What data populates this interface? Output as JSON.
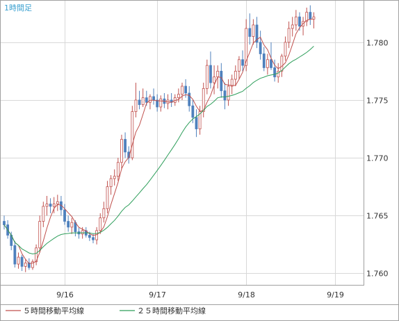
{
  "chart_data": {
    "type": "candlestick",
    "title": "1時間足",
    "y_ticks": [
      "1.780",
      "1.775",
      "1.770",
      "1.765",
      "1.760"
    ],
    "x_ticks": [
      "9/16",
      "9/17",
      "9/18",
      "9/19"
    ],
    "ylim": [
      1.759,
      1.7836
    ],
    "grid": true,
    "legend_position": "bottom",
    "colors": {
      "up": "#c0504d",
      "down": "#4f81bd",
      "ma5": "#c0504d",
      "ma25": "#2e9e5b",
      "grid": "#d8d8d8",
      "frame": "#a0a0a0"
    },
    "series": [
      {
        "name": "５時間移動平均線",
        "color": "#c0504d",
        "kind": "ma5"
      },
      {
        "name": "２５時間移動平均線",
        "color": "#2e9e5b",
        "kind": "ma25"
      }
    ],
    "x_tick_candle_index": [
      17,
      43,
      68,
      93
    ],
    "candles": [
      [
        1.7645,
        1.765,
        1.7638,
        1.7642
      ],
      [
        1.7642,
        1.7646,
        1.763,
        1.7633
      ],
      [
        1.7633,
        1.7636,
        1.762,
        1.7624
      ],
      [
        1.7624,
        1.7628,
        1.7605,
        1.7608
      ],
      [
        1.7608,
        1.7618,
        1.7604,
        1.7614
      ],
      [
        1.7614,
        1.7616,
        1.7602,
        1.7606
      ],
      [
        1.7606,
        1.7612,
        1.7601,
        1.7609
      ],
      [
        1.7609,
        1.7613,
        1.7603,
        1.7605
      ],
      [
        1.7605,
        1.7612,
        1.7603,
        1.761
      ],
      [
        1.761,
        1.7625,
        1.7607,
        1.7622
      ],
      [
        1.7622,
        1.765,
        1.7618,
        1.7645
      ],
      [
        1.7645,
        1.7662,
        1.764,
        1.7658
      ],
      [
        1.7658,
        1.7667,
        1.765,
        1.766
      ],
      [
        1.766,
        1.7665,
        1.7652,
        1.7658
      ],
      [
        1.7658,
        1.7666,
        1.7652,
        1.766
      ],
      [
        1.766,
        1.7668,
        1.7654,
        1.7662
      ],
      [
        1.7662,
        1.7667,
        1.765,
        1.7655
      ],
      [
        1.7655,
        1.766,
        1.7642,
        1.7645
      ],
      [
        1.7645,
        1.765,
        1.7636,
        1.764
      ],
      [
        1.764,
        1.7648,
        1.7634,
        1.7644
      ],
      [
        1.7644,
        1.7646,
        1.7632,
        1.7636
      ],
      [
        1.7636,
        1.764,
        1.763,
        1.7634
      ],
      [
        1.7634,
        1.764,
        1.763,
        1.7637
      ],
      [
        1.7637,
        1.764,
        1.7631,
        1.7633
      ],
      [
        1.7633,
        1.7636,
        1.7628,
        1.7631
      ],
      [
        1.7631,
        1.7634,
        1.7626,
        1.7629
      ],
      [
        1.7629,
        1.764,
        1.7625,
        1.7637
      ],
      [
        1.7637,
        1.7652,
        1.7634,
        1.7648
      ],
      [
        1.7648,
        1.7662,
        1.7644,
        1.7656
      ],
      [
        1.7656,
        1.768,
        1.7652,
        1.7675
      ],
      [
        1.7675,
        1.7685,
        1.7668,
        1.7682
      ],
      [
        1.7682,
        1.769,
        1.7676,
        1.7684
      ],
      [
        1.7684,
        1.77,
        1.768,
        1.7696
      ],
      [
        1.7696,
        1.772,
        1.769,
        1.7716
      ],
      [
        1.7716,
        1.7722,
        1.77,
        1.7705
      ],
      [
        1.7705,
        1.771,
        1.7695,
        1.77
      ],
      [
        1.77,
        1.7745,
        1.7698,
        1.774
      ],
      [
        1.774,
        1.7765,
        1.7735,
        1.775
      ],
      [
        1.775,
        1.7758,
        1.7742,
        1.7746
      ],
      [
        1.7746,
        1.776,
        1.7744,
        1.7752
      ],
      [
        1.7752,
        1.7758,
        1.7745,
        1.7748
      ],
      [
        1.7748,
        1.7755,
        1.7742,
        1.7753
      ],
      [
        1.7753,
        1.776,
        1.7746,
        1.775
      ],
      [
        1.775,
        1.7755,
        1.774,
        1.7744
      ],
      [
        1.7744,
        1.7754,
        1.774,
        1.7751
      ],
      [
        1.7751,
        1.7756,
        1.7743,
        1.7747
      ],
      [
        1.7747,
        1.7755,
        1.7742,
        1.775
      ],
      [
        1.775,
        1.7756,
        1.7744,
        1.7748
      ],
      [
        1.7748,
        1.7755,
        1.7745,
        1.7752
      ],
      [
        1.7752,
        1.776,
        1.7748,
        1.7755
      ],
      [
        1.7755,
        1.7765,
        1.775,
        1.7762
      ],
      [
        1.7762,
        1.7768,
        1.7752,
        1.7756
      ],
      [
        1.7756,
        1.7762,
        1.774,
        1.7745
      ],
      [
        1.7745,
        1.775,
        1.773,
        1.7735
      ],
      [
        1.7735,
        1.7742,
        1.7718,
        1.7725
      ],
      [
        1.7725,
        1.7745,
        1.772,
        1.774
      ],
      [
        1.774,
        1.7765,
        1.7735,
        1.776
      ],
      [
        1.776,
        1.7785,
        1.7755,
        1.778
      ],
      [
        1.778,
        1.7792,
        1.776,
        1.7765
      ],
      [
        1.7765,
        1.778,
        1.7755,
        1.777
      ],
      [
        1.777,
        1.778,
        1.776,
        1.7775
      ],
      [
        1.7775,
        1.7782,
        1.7752,
        1.7758
      ],
      [
        1.7758,
        1.7765,
        1.7742,
        1.775
      ],
      [
        1.775,
        1.7768,
        1.7745,
        1.7762
      ],
      [
        1.7762,
        1.7772,
        1.7755,
        1.7768
      ],
      [
        1.7768,
        1.778,
        1.7762,
        1.7775
      ],
      [
        1.7775,
        1.7788,
        1.7768,
        1.7785
      ],
      [
        1.7785,
        1.7793,
        1.7775,
        1.778
      ],
      [
        1.778,
        1.782,
        1.7775,
        1.7812
      ],
      [
        1.7812,
        1.7825,
        1.7798,
        1.7805
      ],
      [
        1.7805,
        1.782,
        1.7798,
        1.7815
      ],
      [
        1.7815,
        1.7822,
        1.7795,
        1.78
      ],
      [
        1.78,
        1.781,
        1.7785,
        1.779
      ],
      [
        1.779,
        1.7796,
        1.7775,
        1.7778
      ],
      [
        1.7778,
        1.779,
        1.7772,
        1.7785
      ],
      [
        1.7785,
        1.78,
        1.7776,
        1.7778
      ],
      [
        1.7778,
        1.7785,
        1.7766,
        1.777
      ],
      [
        1.777,
        1.7782,
        1.7765,
        1.7775
      ],
      [
        1.7775,
        1.779,
        1.777,
        1.7788
      ],
      [
        1.7788,
        1.7805,
        1.7784,
        1.78
      ],
      [
        1.78,
        1.7818,
        1.7795,
        1.7812
      ],
      [
        1.7812,
        1.7822,
        1.7805,
        1.7815
      ],
      [
        1.7815,
        1.7828,
        1.781,
        1.7822
      ],
      [
        1.7822,
        1.7826,
        1.781,
        1.7814
      ],
      [
        1.7814,
        1.7822,
        1.7806,
        1.7818
      ],
      [
        1.7818,
        1.783,
        1.7814,
        1.7826
      ],
      [
        1.7826,
        1.7832,
        1.7815,
        1.782
      ],
      [
        1.782,
        1.7826,
        1.7812,
        1.7822
      ]
    ]
  },
  "legend": {
    "ma5_label": "５時間移動平均線",
    "ma25_label": "２５時間移動平均線"
  }
}
